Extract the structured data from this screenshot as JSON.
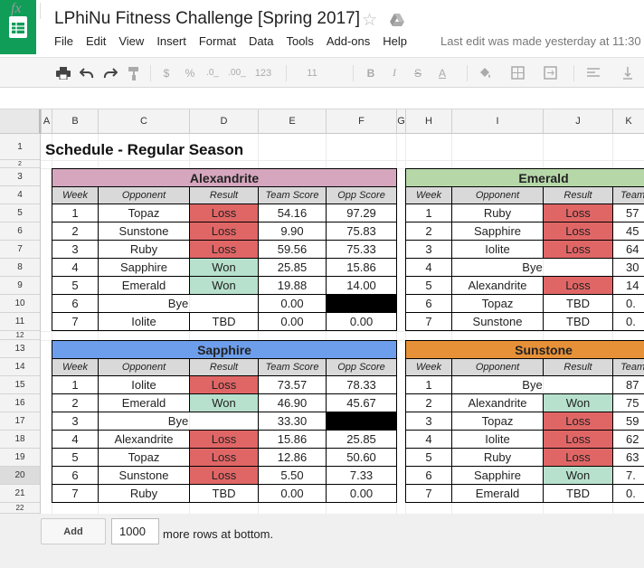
{
  "app": {
    "title": "LPhiNu Fitness Challenge [Spring 2017]",
    "last_edit": "Last edit was made yesterday at 11:30"
  },
  "menu": [
    "File",
    "Edit",
    "View",
    "Insert",
    "Format",
    "Data",
    "Tools",
    "Add-ons",
    "Help"
  ],
  "toolbar": {
    "currency": "$",
    "percent": "%",
    "dec_less": ".0_",
    "dec_more": ".00_",
    "number_format": "123",
    "font_size": "11",
    "bold": "B",
    "italic": "I",
    "strike": "S",
    "text_color": "A"
  },
  "formula_bar": {
    "fx": "fx",
    "value": ""
  },
  "columns": [
    "A",
    "B",
    "C",
    "D",
    "E",
    "F",
    "G",
    "H",
    "I",
    "J",
    "K"
  ],
  "rows": [
    "1",
    "2",
    "3",
    "4",
    "5",
    "6",
    "7",
    "8",
    "9",
    "10",
    "11",
    "12",
    "13",
    "14",
    "15",
    "16",
    "17",
    "18",
    "19",
    "20",
    "21",
    "22"
  ],
  "sheet_title": "Schedule - Regular Season",
  "headers": {
    "week": "Week",
    "opponent": "Opponent",
    "result": "Result",
    "team_score": "Team Score",
    "opp_score": "Opp Score"
  },
  "teams": {
    "alexandrite": {
      "name": "Alexandrite",
      "color": "#d5a6bd",
      "rows": [
        {
          "week": "1",
          "opponent": "Topaz",
          "result": "Loss",
          "team": "54.16",
          "opp": "97.29"
        },
        {
          "week": "2",
          "opponent": "Sunstone",
          "result": "Loss",
          "team": "9.90",
          "opp": "75.83"
        },
        {
          "week": "3",
          "opponent": "Ruby",
          "result": "Loss",
          "team": "59.56",
          "opp": "75.33"
        },
        {
          "week": "4",
          "opponent": "Sapphire",
          "result": "Won",
          "team": "25.85",
          "opp": "15.86"
        },
        {
          "week": "5",
          "opponent": "Emerald",
          "result": "Won",
          "team": "19.88",
          "opp": "14.00"
        },
        {
          "week": "6",
          "opponent": "Bye",
          "result": "",
          "team": "0.00",
          "opp": ""
        },
        {
          "week": "7",
          "opponent": "Iolite",
          "result": "TBD",
          "team": "0.00",
          "opp": "0.00"
        }
      ]
    },
    "emerald": {
      "name": "Emerald",
      "color": "#b6d7a8",
      "rows": [
        {
          "week": "1",
          "opponent": "Ruby",
          "result": "Loss",
          "team": "57"
        },
        {
          "week": "2",
          "opponent": "Sapphire",
          "result": "Loss",
          "team": "45"
        },
        {
          "week": "3",
          "opponent": "Iolite",
          "result": "Loss",
          "team": "64"
        },
        {
          "week": "4",
          "opponent": "Bye",
          "result": "",
          "team": "30"
        },
        {
          "week": "5",
          "opponent": "Alexandrite",
          "result": "Loss",
          "team": "14"
        },
        {
          "week": "6",
          "opponent": "Topaz",
          "result": "TBD",
          "team": "0."
        },
        {
          "week": "7",
          "opponent": "Sunstone",
          "result": "TBD",
          "team": "0."
        }
      ]
    },
    "sapphire": {
      "name": "Sapphire",
      "color": "#6d9eeb",
      "rows": [
        {
          "week": "1",
          "opponent": "Iolite",
          "result": "Loss",
          "team": "73.57",
          "opp": "78.33"
        },
        {
          "week": "2",
          "opponent": "Emerald",
          "result": "Won",
          "team": "46.90",
          "opp": "45.67"
        },
        {
          "week": "3",
          "opponent": "Bye",
          "result": "",
          "team": "33.30",
          "opp": ""
        },
        {
          "week": "4",
          "opponent": "Alexandrite",
          "result": "Loss",
          "team": "15.86",
          "opp": "25.85"
        },
        {
          "week": "5",
          "opponent": "Topaz",
          "result": "Loss",
          "team": "12.86",
          "opp": "50.60"
        },
        {
          "week": "6",
          "opponent": "Sunstone",
          "result": "Loss",
          "team": "5.50",
          "opp": "7.33"
        },
        {
          "week": "7",
          "opponent": "Ruby",
          "result": "TBD",
          "team": "0.00",
          "opp": "0.00"
        }
      ]
    },
    "sunstone": {
      "name": "Sunstone",
      "color": "#e69138",
      "rows": [
        {
          "week": "1",
          "opponent": "Bye",
          "result": "",
          "team": "87"
        },
        {
          "week": "2",
          "opponent": "Alexandrite",
          "result": "Won",
          "team": "75"
        },
        {
          "week": "3",
          "opponent": "Topaz",
          "result": "Loss",
          "team": "59"
        },
        {
          "week": "4",
          "opponent": "Iolite",
          "result": "Loss",
          "team": "62"
        },
        {
          "week": "5",
          "opponent": "Ruby",
          "result": "Loss",
          "team": "63"
        },
        {
          "week": "6",
          "opponent": "Sapphire",
          "result": "Won",
          "team": "7."
        },
        {
          "week": "7",
          "opponent": "Emerald",
          "result": "TBD",
          "team": "0."
        }
      ]
    }
  },
  "team_header_short": "Team",
  "bottom": {
    "add_label": "Add",
    "rows_value": "1000",
    "more_rows": "more rows at bottom."
  },
  "colors": {
    "loss": "#e06666",
    "won": "#b7e1cd",
    "brand": "#0f9d58"
  }
}
